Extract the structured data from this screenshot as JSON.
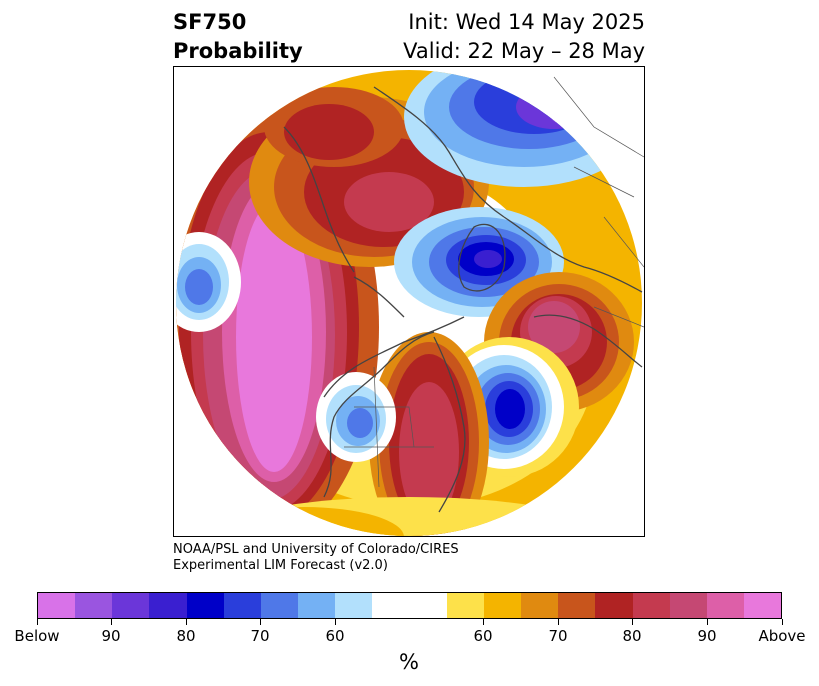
{
  "title": {
    "left_line1": "SF750",
    "left_line2": "Probability",
    "right_line1": "Init: Wed 14 May 2025",
    "right_line2": "Valid: 22 May – 28 May"
  },
  "credit": {
    "line1": "NOAA/PSL and University of Colorado/CIRES",
    "line2": "Experimental LIM Forecast (v2.0)"
  },
  "colorbar": {
    "colors": [
      "#d872e8",
      "#9a55e0",
      "#6b36d9",
      "#3a1fd0",
      "#0000c8",
      "#2a3edb",
      "#4f78e8",
      "#74b1f4",
      "#b2e0fc",
      "#ffffff",
      "#ffffff",
      "#fde14a",
      "#f4b400",
      "#e08a10",
      "#c8551c",
      "#b02323",
      "#c43a4f",
      "#c54873",
      "#dd5fa8",
      "#e878dc"
    ],
    "labels": [
      {
        "text": "Below"
      },
      {
        "text": "90"
      },
      {
        "text": "80"
      },
      {
        "text": "70"
      },
      {
        "text": "60"
      },
      {
        "text": "60"
      },
      {
        "text": "70"
      },
      {
        "text": "80"
      },
      {
        "text": "90"
      },
      {
        "text": "Above"
      }
    ],
    "unit": "%"
  }
}
